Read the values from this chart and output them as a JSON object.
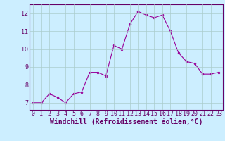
{
  "x": [
    0,
    1,
    2,
    3,
    4,
    5,
    6,
    7,
    8,
    9,
    10,
    11,
    12,
    13,
    14,
    15,
    16,
    17,
    18,
    19,
    20,
    21,
    22,
    23
  ],
  "y": [
    7.0,
    7.0,
    7.5,
    7.3,
    7.0,
    7.5,
    7.6,
    8.7,
    8.7,
    8.5,
    10.2,
    10.0,
    11.4,
    12.1,
    11.9,
    11.75,
    11.9,
    11.0,
    9.8,
    9.3,
    9.2,
    8.6,
    8.6,
    8.7
  ],
  "line_color": "#990099",
  "marker": "o",
  "markersize": 2,
  "linewidth": 0.8,
  "background_color": "#cceeff",
  "grid_color": "#aacccc",
  "xlabel": "Windchill (Refroidissement éolien,°C)",
  "xlabel_color": "#660066",
  "xlabel_fontsize": 7,
  "yticks": [
    7,
    8,
    9,
    10,
    11,
    12
  ],
  "xticks": [
    0,
    1,
    2,
    3,
    4,
    5,
    6,
    7,
    8,
    9,
    10,
    11,
    12,
    13,
    14,
    15,
    16,
    17,
    18,
    19,
    20,
    21,
    22,
    23
  ],
  "ylim": [
    6.6,
    12.5
  ],
  "xlim": [
    -0.5,
    23.5
  ],
  "tick_color": "#660066",
  "tick_fontsize": 6,
  "spine_color": "#660066"
}
